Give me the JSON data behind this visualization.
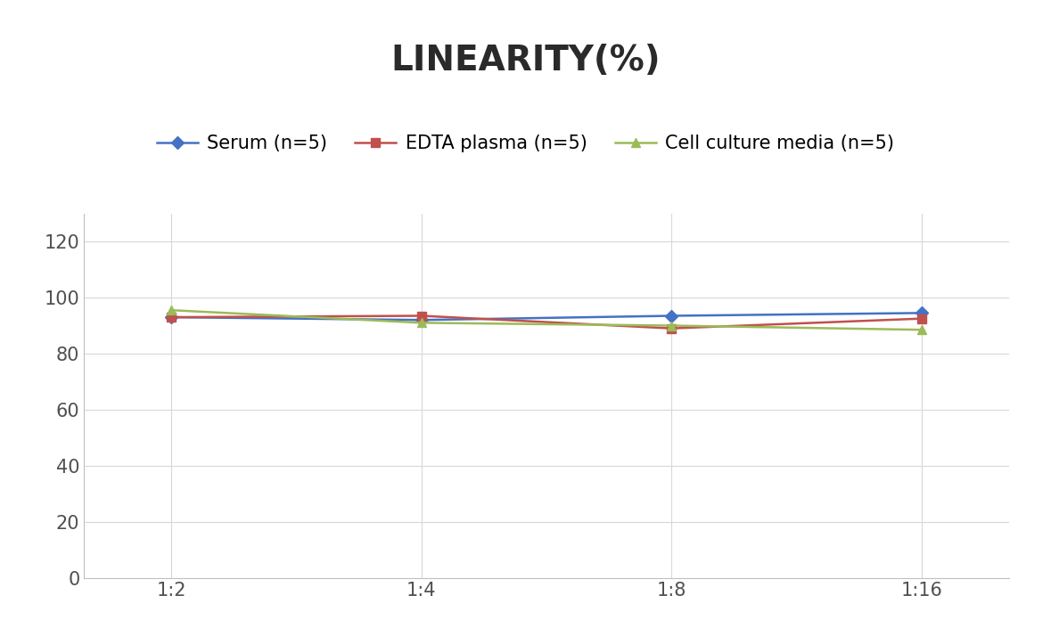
{
  "title": "LINEARITY(%)",
  "x_labels": [
    "1:2",
    "1:4",
    "1:8",
    "1:16"
  ],
  "x_positions": [
    0,
    1,
    2,
    3
  ],
  "series": [
    {
      "label": "Serum (n=5)",
      "values": [
        93.0,
        92.0,
        93.5,
        94.5
      ],
      "color": "#4472C4",
      "marker": "D",
      "marker_size": 7
    },
    {
      "label": "EDTA plasma (n=5)",
      "values": [
        93.0,
        93.5,
        89.0,
        92.5
      ],
      "color": "#C0504D",
      "marker": "s",
      "marker_size": 7
    },
    {
      "label": "Cell culture media (n=5)",
      "values": [
        95.5,
        91.0,
        90.0,
        88.5
      ],
      "color": "#9BBB59",
      "marker": "^",
      "marker_size": 7
    }
  ],
  "ylim": [
    0,
    130
  ],
  "yticks": [
    0,
    20,
    40,
    60,
    80,
    100,
    120
  ],
  "title_fontsize": 28,
  "legend_fontsize": 15,
  "tick_fontsize": 15,
  "background_color": "#ffffff",
  "grid_color": "#d8d8d8",
  "line_width": 1.8,
  "spine_color": "#c0c0c0"
}
